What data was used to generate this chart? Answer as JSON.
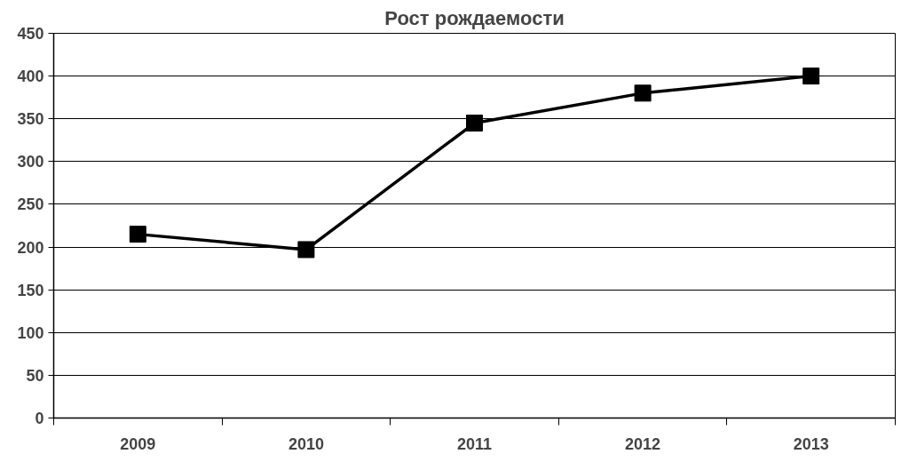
{
  "chart_data": {
    "type": "line",
    "title": "Рост рождаемости",
    "categories": [
      "2009",
      "2010",
      "2011",
      "2012",
      "2013"
    ],
    "series": [
      {
        "color": "#000000",
        "values": [
          215,
          197,
          345,
          380,
          400
        ]
      }
    ],
    "ylim": [
      0,
      450
    ],
    "yticks": [
      0,
      50,
      100,
      150,
      200,
      250,
      300,
      350,
      400,
      450
    ],
    "grid": "y",
    "marker": "square",
    "line_style": "solid"
  }
}
